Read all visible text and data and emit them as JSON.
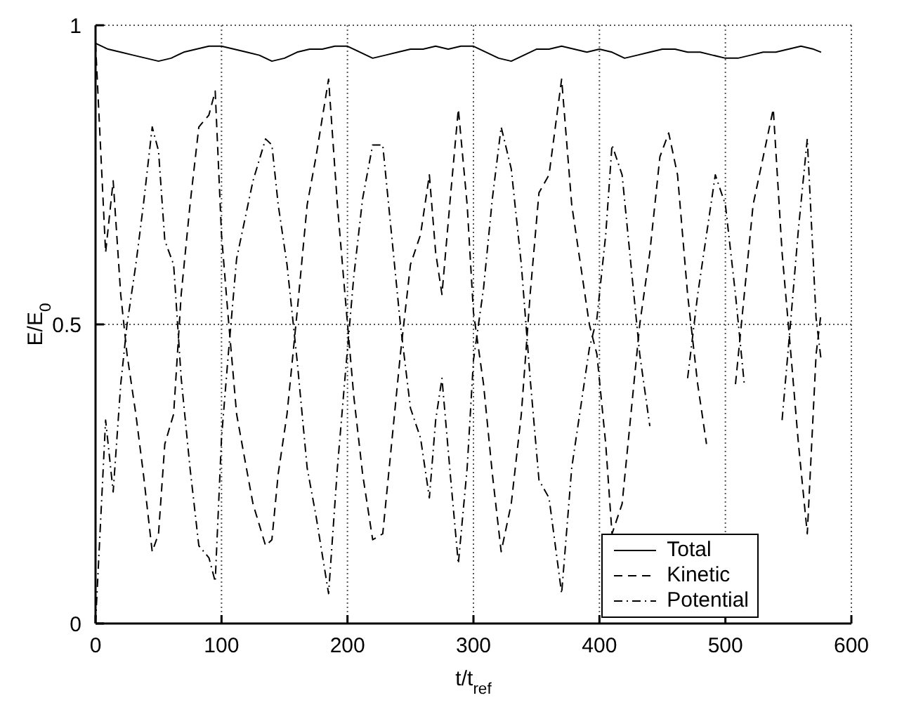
{
  "chart_data": {
    "type": "line",
    "xlabel": "t/t$_{ref}$",
    "ylabel": "E/E$_{0}$",
    "xlim": [
      0,
      600
    ],
    "ylim": [
      0,
      1
    ],
    "xticks": [
      0,
      100,
      200,
      300,
      400,
      500,
      600
    ],
    "yticks": [
      0,
      0.5,
      1
    ],
    "grid": true,
    "legend": "bottom right",
    "marker": "none",
    "series": [
      {
        "name": "Total",
        "color": "#000000",
        "line_style": "solid",
        "x": [
          0,
          10,
          20,
          30,
          40,
          50,
          60,
          70,
          80,
          90,
          100,
          110,
          120,
          130,
          140,
          150,
          160,
          170,
          180,
          190,
          200,
          210,
          220,
          230,
          240,
          250,
          260,
          270,
          280,
          290,
          300,
          310,
          320,
          330,
          340,
          350,
          360,
          370,
          380,
          390,
          400,
          410,
          420,
          430,
          440,
          450,
          460,
          470,
          480,
          490,
          500,
          510,
          520,
          530,
          540,
          550,
          560,
          570,
          576
        ],
        "values": [
          0.97,
          0.96,
          0.955,
          0.95,
          0.945,
          0.94,
          0.945,
          0.955,
          0.96,
          0.965,
          0.965,
          0.96,
          0.955,
          0.95,
          0.94,
          0.945,
          0.955,
          0.96,
          0.96,
          0.965,
          0.965,
          0.955,
          0.945,
          0.95,
          0.955,
          0.96,
          0.96,
          0.965,
          0.96,
          0.965,
          0.965,
          0.955,
          0.945,
          0.94,
          0.95,
          0.96,
          0.96,
          0.965,
          0.96,
          0.955,
          0.96,
          0.955,
          0.945,
          0.95,
          0.955,
          0.96,
          0.96,
          0.955,
          0.955,
          0.95,
          0.945,
          0.945,
          0.95,
          0.955,
          0.955,
          0.96,
          0.965,
          0.96,
          0.955
        ]
      },
      {
        "name": "Kinetic",
        "color": "#000000",
        "line_style": "dashed",
        "x": [
          0,
          8,
          14,
          20,
          25,
          32,
          38,
          45,
          50,
          55,
          62,
          68,
          75,
          82,
          90,
          95,
          100,
          105,
          112,
          118,
          125,
          135,
          140,
          145,
          152,
          160,
          168,
          175,
          185,
          192,
          198,
          205,
          212,
          220,
          228,
          235,
          242,
          250,
          258,
          265,
          270,
          275,
          282,
          288,
          295,
          300,
          308,
          315,
          322,
          330,
          338,
          345,
          352,
          360,
          370,
          378,
          385,
          392,
          398,
          405,
          410,
          418,
          425,
          432,
          440,
          448,
          455,
          462,
          470,
          478,
          485,
          492,
          500,
          508,
          515,
          522,
          530,
          538,
          545,
          552,
          558,
          565,
          572,
          576
        ],
        "values": [
          0.97,
          0.62,
          0.74,
          0.55,
          0.45,
          0.35,
          0.25,
          0.12,
          0.15,
          0.3,
          0.35,
          0.55,
          0.7,
          0.83,
          0.85,
          0.89,
          0.65,
          0.52,
          0.35,
          0.28,
          0.2,
          0.13,
          0.14,
          0.25,
          0.35,
          0.52,
          0.7,
          0.78,
          0.91,
          0.7,
          0.55,
          0.38,
          0.25,
          0.14,
          0.15,
          0.3,
          0.45,
          0.6,
          0.65,
          0.75,
          0.62,
          0.55,
          0.72,
          0.86,
          0.7,
          0.52,
          0.4,
          0.25,
          0.12,
          0.2,
          0.35,
          0.55,
          0.72,
          0.75,
          0.91,
          0.7,
          0.6,
          0.5,
          0.45,
          0.3,
          0.15,
          0.2,
          0.35,
          0.5,
          0.62,
          0.78,
          0.82,
          0.75,
          0.55,
          0.4,
          0.3,
          null,
          null,
          0.4,
          0.55,
          0.7,
          0.78,
          0.86,
          0.62,
          0.45,
          0.3,
          0.15,
          0.45,
          0.52
        ]
      },
      {
        "name": "Potential",
        "color": "#000000",
        "line_style": "dashdot",
        "x": [
          0,
          8,
          14,
          20,
          25,
          32,
          38,
          45,
          50,
          55,
          62,
          68,
          75,
          82,
          90,
          95,
          100,
          105,
          112,
          118,
          125,
          135,
          140,
          145,
          152,
          160,
          168,
          175,
          185,
          192,
          198,
          205,
          212,
          220,
          228,
          235,
          242,
          250,
          258,
          265,
          270,
          275,
          282,
          288,
          295,
          300,
          308,
          315,
          322,
          330,
          338,
          345,
          352,
          360,
          370,
          378,
          385,
          392,
          398,
          405,
          410,
          418,
          425,
          432,
          440,
          448,
          455,
          462,
          470,
          478,
          485,
          492,
          500,
          508,
          515,
          522,
          530,
          538,
          545,
          552,
          558,
          565,
          572,
          576
        ],
        "values": [
          0.0,
          0.34,
          0.22,
          0.4,
          0.5,
          0.6,
          0.7,
          0.83,
          0.79,
          0.64,
          0.6,
          0.41,
          0.26,
          0.13,
          0.11,
          0.07,
          0.31,
          0.44,
          0.61,
          0.67,
          0.74,
          0.81,
          0.8,
          0.7,
          0.6,
          0.44,
          0.26,
          0.18,
          0.05,
          0.26,
          0.41,
          0.58,
          0.71,
          0.8,
          0.8,
          0.65,
          0.5,
          0.36,
          0.31,
          0.21,
          0.34,
          0.41,
          0.24,
          0.1,
          0.26,
          0.44,
          0.56,
          0.71,
          0.83,
          0.76,
          0.6,
          0.41,
          0.24,
          0.21,
          0.05,
          0.26,
          0.36,
          0.46,
          0.51,
          0.65,
          0.8,
          0.75,
          0.6,
          0.45,
          0.33,
          null,
          null,
          null,
          0.41,
          0.55,
          0.65,
          0.75,
          0.7,
          0.55,
          0.4,
          null,
          null,
          null,
          0.34,
          0.51,
          0.66,
          0.81,
          0.51,
          0.44
        ]
      }
    ]
  }
}
